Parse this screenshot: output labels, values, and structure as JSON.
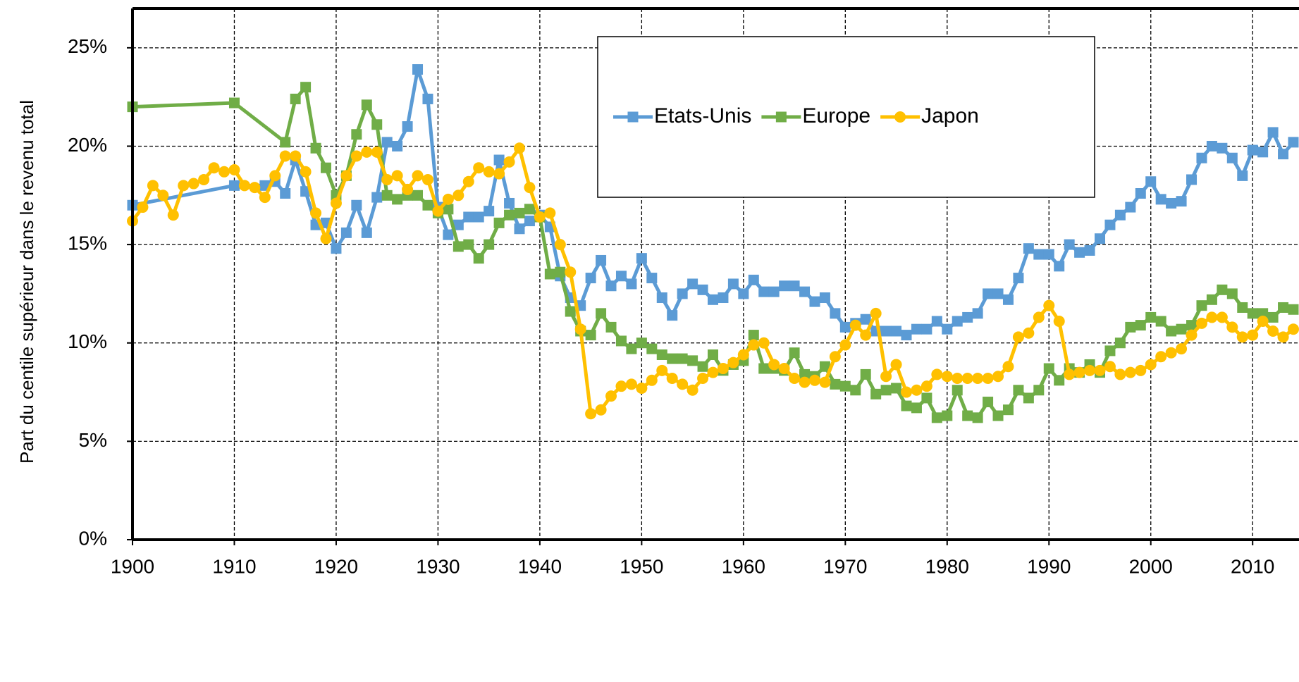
{
  "chart_data": {
    "type": "line",
    "y_label": "Part du centile supérieur dans le revenu total",
    "xlim": [
      1900,
      2014
    ],
    "xticks": [
      1900,
      1910,
      1920,
      1930,
      1940,
      1950,
      1960,
      1970,
      1980,
      1990,
      2000,
      2010
    ],
    "ylim": [
      0,
      27
    ],
    "yticks": [
      {
        "value": 0,
        "label": "0%"
      },
      {
        "value": 5,
        "label": "5%"
      },
      {
        "value": 10,
        "label": "10%"
      },
      {
        "value": 15,
        "label": "15%"
      },
      {
        "value": 20,
        "label": "20%"
      },
      {
        "value": 25,
        "label": "25%"
      }
    ],
    "grid": true,
    "legend": "top",
    "series": [
      {
        "name": "Etats-Unis",
        "color": "#5b9bd5",
        "marker": "square",
        "x": [
          1900,
          1910,
          1913,
          1914,
          1915,
          1916,
          1917,
          1918,
          1919,
          1920,
          1921,
          1922,
          1923,
          1924,
          1925,
          1926,
          1927,
          1928,
          1929,
          1930,
          1931,
          1932,
          1933,
          1934,
          1935,
          1936,
          1937,
          1938,
          1939,
          1940,
          1941,
          1942,
          1943,
          1944,
          1945,
          1946,
          1947,
          1948,
          1949,
          1950,
          1951,
          1952,
          1953,
          1954,
          1955,
          1956,
          1957,
          1958,
          1959,
          1960,
          1961,
          1962,
          1963,
          1964,
          1965,
          1966,
          1967,
          1968,
          1969,
          1970,
          1971,
          1972,
          1973,
          1974,
          1975,
          1976,
          1977,
          1978,
          1979,
          1980,
          1981,
          1982,
          1983,
          1984,
          1985,
          1986,
          1987,
          1988,
          1989,
          1990,
          1991,
          1992,
          1993,
          1994,
          1995,
          1996,
          1997,
          1998,
          1999,
          2000,
          2001,
          2002,
          2003,
          2004,
          2005,
          2006,
          2007,
          2008,
          2009,
          2010,
          2011,
          2012,
          2013,
          2014
        ],
        "values": [
          17.0,
          18.0,
          18.0,
          18.2,
          17.6,
          19.3,
          17.7,
          16.0,
          16.1,
          14.8,
          15.6,
          17.0,
          15.6,
          17.4,
          20.2,
          20.0,
          21.0,
          23.9,
          22.4,
          16.9,
          15.5,
          16.0,
          16.4,
          16.4,
          16.7,
          19.3,
          17.1,
          15.8,
          16.2,
          16.5,
          15.9,
          13.4,
          12.3,
          11.9,
          13.3,
          14.2,
          12.9,
          13.4,
          13.0,
          14.3,
          13.3,
          12.3,
          11.4,
          12.5,
          13.0,
          12.7,
          12.2,
          12.3,
          13.0,
          12.5,
          13.2,
          12.6,
          12.6,
          12.9,
          12.9,
          12.6,
          12.1,
          12.3,
          11.5,
          10.8,
          11.0,
          11.2,
          10.6,
          10.6,
          10.6,
          10.4,
          10.7,
          10.7,
          11.1,
          10.7,
          11.1,
          11.3,
          11.5,
          12.5,
          12.5,
          12.2,
          13.3,
          14.8,
          14.5,
          14.5,
          13.9,
          15.0,
          14.6,
          14.7,
          15.3,
          16.0,
          16.5,
          16.9,
          17.6,
          18.2,
          17.3,
          17.1,
          17.2,
          18.3,
          19.4,
          20.0,
          19.9,
          19.4,
          18.5,
          19.8,
          19.7,
          20.7,
          19.6,
          20.2
        ]
      },
      {
        "name": "Europe",
        "color": "#70ad47",
        "marker": "square",
        "x": [
          1900,
          1910,
          1915,
          1916,
          1917,
          1918,
          1919,
          1920,
          1921,
          1922,
          1923,
          1924,
          1925,
          1926,
          1927,
          1928,
          1929,
          1930,
          1931,
          1932,
          1933,
          1934,
          1935,
          1936,
          1937,
          1938,
          1939,
          1940,
          1941,
          1942,
          1943,
          1944,
          1945,
          1946,
          1947,
          1948,
          1949,
          1950,
          1951,
          1952,
          1953,
          1954,
          1955,
          1956,
          1957,
          1958,
          1959,
          1960,
          1961,
          1962,
          1963,
          1964,
          1965,
          1966,
          1967,
          1968,
          1969,
          1970,
          1971,
          1972,
          1973,
          1974,
          1975,
          1976,
          1977,
          1978,
          1979,
          1980,
          1981,
          1982,
          1983,
          1984,
          1985,
          1986,
          1987,
          1988,
          1989,
          1990,
          1991,
          1992,
          1993,
          1994,
          1995,
          1996,
          1997,
          1998,
          1999,
          2000,
          2001,
          2002,
          2003,
          2004,
          2005,
          2006,
          2007,
          2008,
          2009,
          2010,
          2011,
          2012,
          2013,
          2014
        ],
        "values": [
          22.0,
          22.2,
          20.2,
          22.4,
          23.0,
          19.9,
          18.9,
          17.5,
          18.5,
          20.6,
          22.1,
          21.1,
          17.5,
          17.3,
          17.5,
          17.5,
          17.0,
          16.6,
          16.8,
          14.9,
          15.0,
          14.3,
          15.0,
          16.1,
          16.5,
          16.6,
          16.8,
          16.4,
          13.5,
          13.6,
          11.6,
          10.6,
          10.4,
          11.5,
          10.8,
          10.1,
          9.7,
          10.0,
          9.7,
          9.4,
          9.2,
          9.2,
          9.1,
          8.8,
          9.4,
          8.6,
          8.9,
          9.1,
          10.4,
          8.7,
          8.7,
          8.6,
          9.5,
          8.4,
          8.3,
          8.8,
          7.9,
          7.8,
          7.6,
          8.4,
          7.4,
          7.6,
          7.7,
          6.8,
          6.7,
          7.2,
          6.2,
          6.3,
          7.6,
          6.3,
          6.2,
          7.0,
          6.3,
          6.6,
          7.6,
          7.2,
          7.6,
          8.7,
          8.1,
          8.7,
          8.5,
          8.9,
          8.5,
          9.6,
          10.0,
          10.8,
          10.9,
          11.3,
          11.1,
          10.6,
          10.7,
          10.9,
          11.9,
          12.2,
          12.7,
          12.5,
          11.8,
          11.5,
          11.5,
          11.3,
          11.8,
          11.7
        ]
      },
      {
        "name": "Japon",
        "color": "#ffc000",
        "marker": "circle",
        "x": [
          1900,
          1901,
          1902,
          1903,
          1904,
          1905,
          1906,
          1907,
          1908,
          1909,
          1910,
          1911,
          1912,
          1913,
          1914,
          1915,
          1916,
          1917,
          1918,
          1919,
          1920,
          1921,
          1922,
          1923,
          1924,
          1925,
          1926,
          1927,
          1928,
          1929,
          1930,
          1931,
          1932,
          1933,
          1934,
          1935,
          1936,
          1937,
          1938,
          1939,
          1940,
          1941,
          1942,
          1943,
          1944,
          1945,
          1946,
          1947,
          1948,
          1949,
          1950,
          1951,
          1952,
          1953,
          1954,
          1955,
          1956,
          1957,
          1958,
          1959,
          1960,
          1961,
          1962,
          1963,
          1964,
          1965,
          1966,
          1967,
          1968,
          1969,
          1970,
          1971,
          1972,
          1973,
          1974,
          1975,
          1976,
          1977,
          1978,
          1979,
          1980,
          1981,
          1982,
          1983,
          1984,
          1985,
          1986,
          1987,
          1988,
          1989,
          1990,
          1991,
          1992,
          1993,
          1994,
          1995,
          1996,
          1997,
          1998,
          1999,
          2000,
          2001,
          2002,
          2003,
          2004,
          2005,
          2006,
          2007,
          2008,
          2009,
          2010,
          2011,
          2012,
          2013,
          2014
        ],
        "values": [
          16.2,
          16.9,
          18.0,
          17.5,
          16.5,
          18.0,
          18.1,
          18.3,
          18.9,
          18.7,
          18.8,
          18.0,
          17.9,
          17.4,
          18.5,
          19.5,
          19.5,
          18.7,
          16.6,
          15.3,
          17.1,
          18.5,
          19.5,
          19.7,
          19.7,
          18.3,
          18.5,
          17.8,
          18.5,
          18.3,
          16.7,
          17.3,
          17.5,
          18.2,
          18.9,
          18.7,
          18.6,
          19.2,
          19.9,
          17.9,
          16.4,
          16.6,
          15.0,
          13.6,
          10.7,
          6.4,
          6.6,
          7.3,
          7.8,
          7.9,
          7.7,
          8.1,
          8.6,
          8.2,
          7.9,
          7.6,
          8.2,
          8.5,
          8.7,
          9.0,
          9.4,
          9.9,
          10.0,
          8.9,
          8.7,
          8.2,
          8.0,
          8.1,
          8.0,
          9.3,
          9.9,
          10.9,
          10.4,
          11.5,
          8.3,
          8.9,
          7.5,
          7.6,
          7.8,
          8.4,
          8.3,
          8.2,
          8.2,
          8.2,
          8.2,
          8.3,
          8.8,
          10.3,
          10.5,
          11.3,
          11.9,
          11.1,
          8.4,
          8.5,
          8.6,
          8.6,
          8.8,
          8.4,
          8.5,
          8.6,
          8.9,
          9.3,
          9.5,
          9.7,
          10.4,
          11.0,
          11.3,
          11.3,
          10.8,
          10.3,
          10.4,
          11.1,
          10.6,
          10.3,
          10.7
        ]
      }
    ]
  }
}
